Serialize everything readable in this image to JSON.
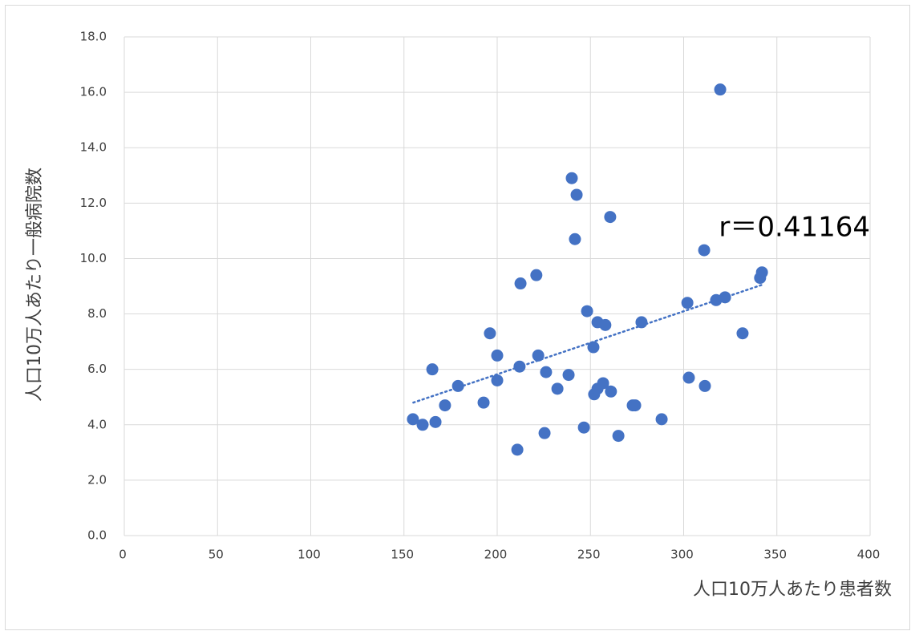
{
  "chart_data": {
    "type": "scatter",
    "x_label": "人口10万人あたり患者数",
    "y_label": "人口10万人あたり一般病院数",
    "annotation": "r＝0.41164",
    "color": "#4472c4",
    "grid": true,
    "xlim": [
      0,
      400
    ],
    "xticks": [
      0,
      50,
      100,
      150,
      200,
      250,
      300,
      350,
      400
    ],
    "ylim": [
      0,
      18
    ],
    "yticks": [
      {
        "value": 0,
        "label": "0.0"
      },
      {
        "value": 2,
        "label": "2.0"
      },
      {
        "value": 4,
        "label": "4.0"
      },
      {
        "value": 6,
        "label": "6.0"
      },
      {
        "value": 8,
        "label": "8.0"
      },
      {
        "value": 10,
        "label": "10.0"
      },
      {
        "value": 12,
        "label": "12.0"
      },
      {
        "value": 14,
        "label": "14.0"
      },
      {
        "value": 16,
        "label": "16.0"
      },
      {
        "value": 18,
        "label": "18.0"
      }
    ],
    "x": [
      154.8,
      160,
      165.2,
      166.9,
      172,
      179,
      192.7,
      196.1,
      200,
      200,
      210.8,
      212,
      212.5,
      221,
      222,
      225.4,
      226.2,
      232.3,
      238.3,
      240,
      241.7,
      242.6,
      246.5,
      248.2,
      251.6,
      252,
      253.8,
      253.8,
      256.8,
      258,
      260.6,
      261,
      265,
      272.7,
      274,
      277.4,
      288.2,
      302,
      302.8,
      311,
      311.4,
      317.4,
      319.6,
      322.2,
      331.6,
      341,
      342
    ],
    "values": [
      4.2,
      4.0,
      6.0,
      4.1,
      4.7,
      5.4,
      4.8,
      7.3,
      6.5,
      5.6,
      3.1,
      6.1,
      9.1,
      9.4,
      6.5,
      3.7,
      5.9,
      5.3,
      5.8,
      12.9,
      10.7,
      12.3,
      3.9,
      8.1,
      6.8,
      5.1,
      5.3,
      7.7,
      5.5,
      7.6,
      11.5,
      5.2,
      3.6,
      4.7,
      4.7,
      7.7,
      4.2,
      8.4,
      5.7,
      10.3,
      5.4,
      8.5,
      16.1,
      8.6,
      7.3,
      9.3,
      9.5
    ],
    "trendline": {
      "x": [
        155,
        342
      ],
      "values": [
        4.8,
        9.05
      ]
    }
  }
}
